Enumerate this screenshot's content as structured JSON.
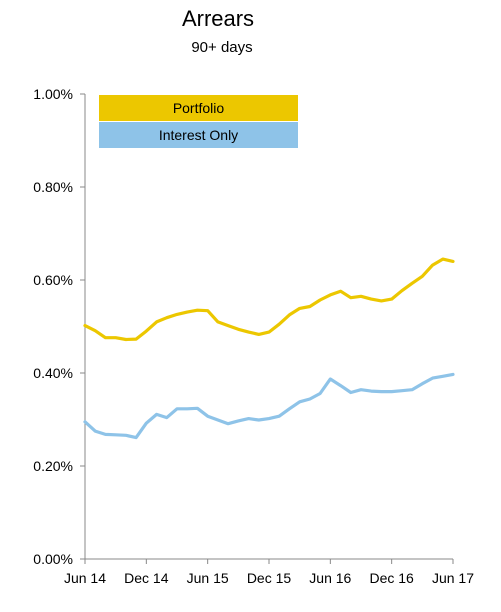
{
  "chart_data": {
    "type": "line",
    "title": "Arrears",
    "subtitle": "90+ days",
    "xlabel": "",
    "ylabel": "",
    "ylim": [
      0,
      0.01
    ],
    "y_ticks": [
      0,
      0.002,
      0.004,
      0.006,
      0.008,
      0.01
    ],
    "y_tick_labels": [
      "0.00%",
      "0.20%",
      "0.40%",
      "0.60%",
      "0.80%",
      "1.00%"
    ],
    "x_tick_labels": [
      "Jun 14",
      "Dec 14",
      "Jun 15",
      "Dec 15",
      "Jun 16",
      "Dec 16",
      "Jun 17"
    ],
    "x_tick_months": [
      0,
      6,
      12,
      18,
      24,
      30,
      36
    ],
    "x": [
      0,
      1,
      2,
      3,
      4,
      5,
      6,
      7,
      8,
      9,
      10,
      11,
      12,
      13,
      14,
      15,
      16,
      17,
      18,
      19,
      20,
      21,
      22,
      23,
      24,
      25,
      26,
      27,
      28,
      29,
      30,
      31,
      32,
      33,
      34,
      35,
      36
    ],
    "legend_position": "top-left",
    "grid": false,
    "series": [
      {
        "name": "Portfolio",
        "color": "#ECC700",
        "values": [
          0.00502,
          0.00491,
          0.00476,
          0.00476,
          0.00472,
          0.00473,
          0.0049,
          0.0051,
          0.00519,
          0.00526,
          0.00531,
          0.00535,
          0.00534,
          0.0051,
          0.00502,
          0.00494,
          0.00488,
          0.00483,
          0.00488,
          0.00505,
          0.00525,
          0.00539,
          0.00543,
          0.00557,
          0.00568,
          0.00576,
          0.00562,
          0.00565,
          0.00559,
          0.00555,
          0.00559,
          0.00577,
          0.00593,
          0.00608,
          0.00632,
          0.00645,
          0.0064
        ]
      },
      {
        "name": "Interest Only",
        "color": "#8EC3E8",
        "values": [
          0.00295,
          0.00275,
          0.00268,
          0.00267,
          0.00266,
          0.00261,
          0.00292,
          0.00311,
          0.00304,
          0.00323,
          0.00323,
          0.00324,
          0.00307,
          0.00299,
          0.00291,
          0.00297,
          0.00302,
          0.00299,
          0.00302,
          0.00307,
          0.00323,
          0.00338,
          0.00344,
          0.00356,
          0.00387,
          0.00373,
          0.00358,
          0.00364,
          0.00361,
          0.0036,
          0.0036,
          0.00362,
          0.00364,
          0.00377,
          0.00389,
          0.00393,
          0.00397
        ]
      }
    ]
  }
}
